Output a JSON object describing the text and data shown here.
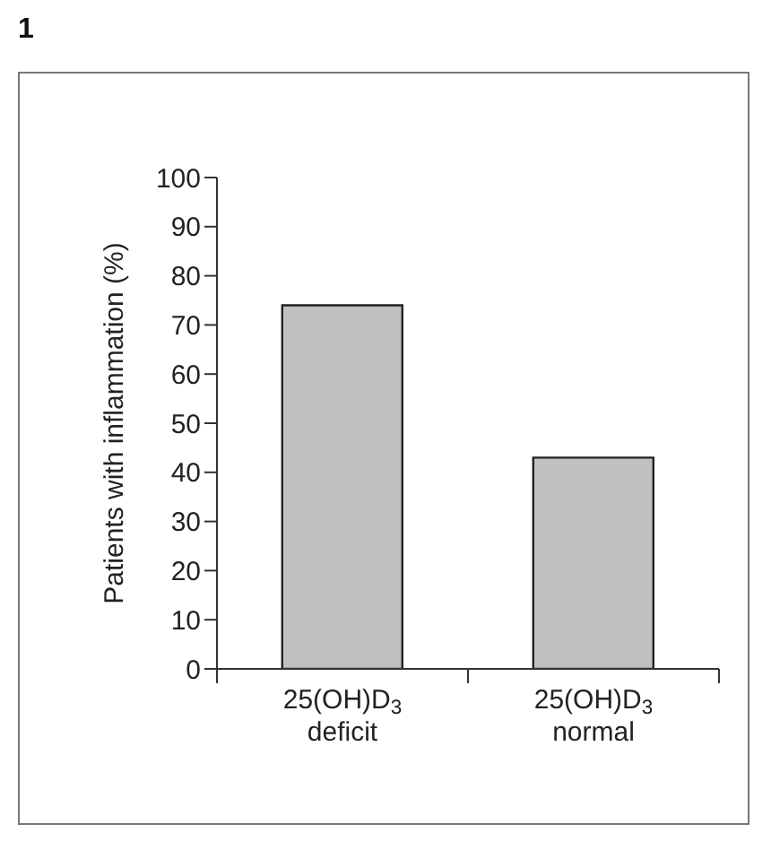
{
  "chart_data": {
    "type": "bar",
    "title": "1",
    "ylabel": "Patients with inflammation (%)",
    "categories": [
      "25(OH)D$_{3}$\ndeficit",
      "25(OH)D$_{3}$\nnormal"
    ],
    "values": [
      74,
      43
    ],
    "color": "#bfc0c2",
    "ylim": [
      0,
      100
    ],
    "yticks": [
      0,
      10,
      20,
      30,
      40,
      50,
      60,
      70,
      80,
      90,
      100
    ],
    "grid": false
  }
}
